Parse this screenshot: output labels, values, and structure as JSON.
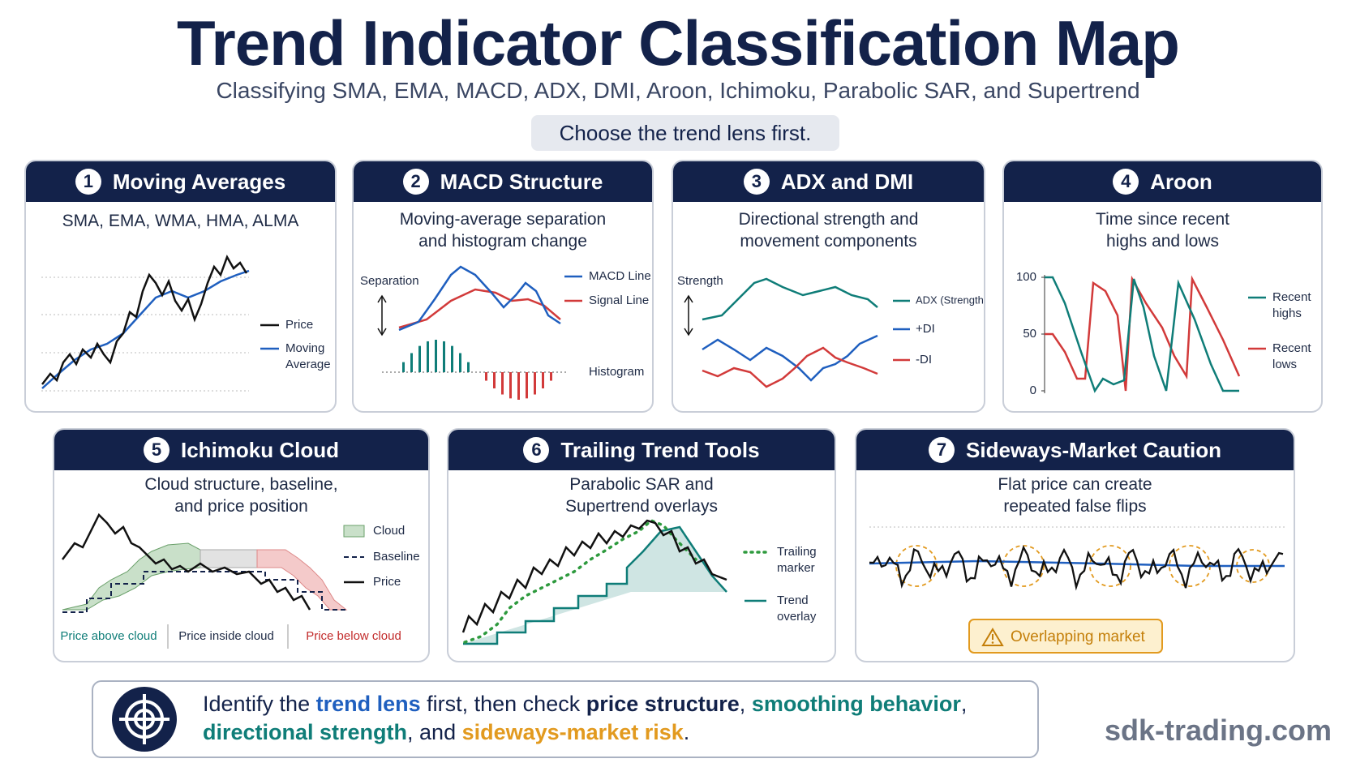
{
  "header": {
    "title": "Trend Indicator Classification Map",
    "subtitle": "Classifying SMA, EMA, MACD, ADX, DMI, Aroon, Ichimoku, Parabolic SAR, and Supertrend",
    "badge": "Choose the trend lens first."
  },
  "panels": [
    {
      "number": "1",
      "title": "Moving Averages",
      "description": "SMA, EMA, WMA, HMA, ALMA",
      "legend": [
        "Price",
        "Moving Average"
      ]
    },
    {
      "number": "2",
      "title": "MACD Structure",
      "description": "Moving-average separation and histogram change",
      "labels": [
        "Separation",
        "Histogram"
      ],
      "legend": [
        "MACD Line",
        "Signal Line"
      ]
    },
    {
      "number": "3",
      "title": "ADX and DMI",
      "description": "Directional strength and movement components",
      "labels": [
        "Strength"
      ],
      "legend": [
        "ADX (Strength)",
        "+DI",
        "-DI"
      ]
    },
    {
      "number": "4",
      "title": "Aroon",
      "description": "Time since recent highs and lows",
      "axis_labels": [
        "100",
        "50",
        "0"
      ],
      "legend": [
        "Recent highs",
        "Recent lows"
      ]
    },
    {
      "number": "5",
      "title": "Ichimoku Cloud",
      "description": "Cloud structure, baseline, and price position",
      "legend": [
        "Cloud",
        "Baseline",
        "Price"
      ],
      "zones": [
        "Price above cloud",
        "Price inside cloud",
        "Price below cloud"
      ]
    },
    {
      "number": "6",
      "title": "Trailing Trend Tools",
      "description": "Parabolic SAR and Supertrend overlays",
      "legend": [
        "Trailing marker",
        "Trend overlay"
      ]
    },
    {
      "number": "7",
      "title": "Sideways-Market Caution",
      "description": "Flat price can create repeated false flips",
      "warning": "Overlapping market"
    }
  ],
  "footer": {
    "message": [
      {
        "text": "Identify the ",
        "color": "#13224a"
      },
      {
        "text": "trend lens",
        "color": "#1f5fbf"
      },
      {
        "text": " first, then check ",
        "color": "#13224a"
      },
      {
        "text": "price structure",
        "color": "#13224a"
      },
      {
        "text": ", ",
        "color": "#13224a"
      },
      {
        "text": "smoothing behavior",
        "color": "#0f7d78"
      },
      {
        "text": ", ",
        "color": "#13224a"
      },
      {
        "text": "directional strength",
        "color": "#0f7d78"
      },
      {
        "text": ", and ",
        "color": "#13224a"
      },
      {
        "text": "sideways-market risk",
        "color": "#e29a1f"
      },
      {
        "text": ".",
        "color": "#13224a"
      }
    ],
    "website": "sdk-trading.com"
  }
}
